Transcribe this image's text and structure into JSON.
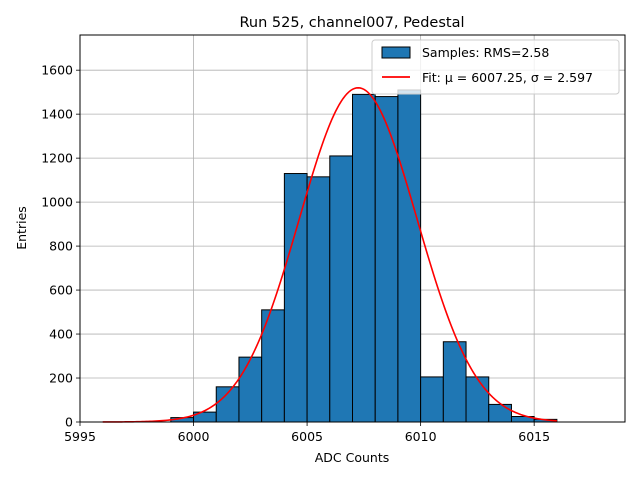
{
  "chart_data": {
    "type": "bar",
    "title": "Run 525, channel007, Pedestal",
    "xlabel": "ADC Counts",
    "ylabel": "Entries",
    "xlim": [
      5995,
      6019
    ],
    "ylim": [
      0,
      1760
    ],
    "xticks": [
      5995,
      6000,
      6005,
      6010,
      6015
    ],
    "yticks": [
      0,
      200,
      400,
      600,
      800,
      1000,
      1200,
      1400,
      1600
    ],
    "grid": true,
    "legend_position": "top-right",
    "histogram": {
      "name": "Samples: RMS=2.58",
      "color": "#1f77b4",
      "bins": [
        {
          "x0": 5999,
          "x1": 6000,
          "count": 20
        },
        {
          "x0": 6000,
          "x1": 6001,
          "count": 45
        },
        {
          "x0": 6001,
          "x1": 6002,
          "count": 160
        },
        {
          "x0": 6002,
          "x1": 6003,
          "count": 295
        },
        {
          "x0": 6003,
          "x1": 6004,
          "count": 510
        },
        {
          "x0": 6004,
          "x1": 6005,
          "count": 1130
        },
        {
          "x0": 6005,
          "x1": 6006,
          "count": 1115
        },
        {
          "x0": 6006,
          "x1": 6007,
          "count": 1210
        },
        {
          "x0": 6007,
          "x1": 6008,
          "count": 1490
        },
        {
          "x0": 6008,
          "x1": 6009,
          "count": 1480
        },
        {
          "x0": 6009,
          "x1": 6010,
          "count": 1510
        },
        {
          "x0": 6010,
          "x1": 6011,
          "count": 205
        },
        {
          "x0": 6011,
          "x1": 6012,
          "count": 365
        },
        {
          "x0": 6012,
          "x1": 6013,
          "count": 205
        },
        {
          "x0": 6013,
          "x1": 6014,
          "count": 80
        },
        {
          "x0": 6014,
          "x1": 6015,
          "count": 25
        },
        {
          "x0": 6015,
          "x1": 6016,
          "count": 12
        }
      ]
    },
    "fit": {
      "name": "Fit: μ = 6007.25, σ = 2.597",
      "color": "#ff0000",
      "mu": 6007.25,
      "sigma": 2.597,
      "amplitude": 1520,
      "x_range": [
        5996,
        6016
      ]
    }
  }
}
